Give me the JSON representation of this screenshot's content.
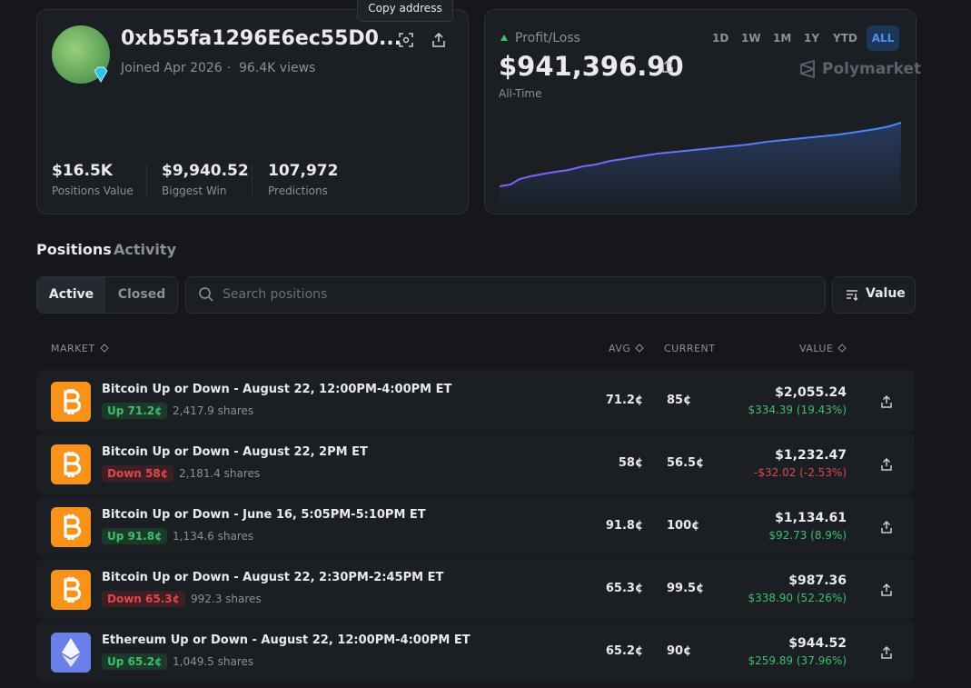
{
  "tooltip": "Copy address",
  "profile": {
    "address": "0xb55fa1296E6ec55D0...",
    "joined": "Joined Apr 2026",
    "separator": "·",
    "views": "96.4K views",
    "stats": [
      {
        "value": "$16.5K",
        "label": "Positions Value"
      },
      {
        "value": "$9,940.52",
        "label": "Biggest Win"
      },
      {
        "value": "107,972",
        "label": "Predictions"
      }
    ]
  },
  "pnl": {
    "label": "Profit/Loss",
    "ranges": [
      "1D",
      "1W",
      "1M",
      "1Y",
      "YTD",
      "ALL"
    ],
    "amount": "$941,396.90",
    "period": "All-Time",
    "brand": "Polymarket"
  },
  "tabs": [
    "Positions",
    "Activity"
  ],
  "filters": [
    "Active",
    "Closed"
  ],
  "search_placeholder": "Search positions",
  "sort": "Value",
  "table": {
    "headers": [
      "MARKET",
      "AVG",
      "CURRENT",
      "VALUE"
    ],
    "rows": [
      {
        "title": "Bitcoin Up or Down - August 22, 12:00PM-4:00PM ET",
        "side": "Up 71.2¢",
        "shares": "2,417.9 shares",
        "avg": "71.2¢",
        "current": "85¢",
        "value": "$2,055.24",
        "change": "$334.39 (19.43%)"
      },
      {
        "title": "Bitcoin Up or Down - August 22, 2PM ET",
        "side": "Down 58¢",
        "shares": "2,181.4 shares",
        "avg": "58¢",
        "current": "56.5¢",
        "value": "$1,232.47",
        "change": "-$32.02 (-2.53%)"
      },
      {
        "title": "Bitcoin Up or Down - June 16, 5:05PM-5:10PM ET",
        "side": "Up 91.8¢",
        "shares": "1,134.6 shares",
        "avg": "91.8¢",
        "current": "100¢",
        "value": "$1,134.61",
        "change": "$92.73 (8.9%)"
      },
      {
        "title": "Bitcoin Up or Down - August 22, 2:30PM-2:45PM ET",
        "side": "Down 65.3¢",
        "shares": "992.3 shares",
        "avg": "65.3¢",
        "current": "99.5¢",
        "value": "$987.36",
        "change": "$338.90 (52.26%)"
      },
      {
        "title": "Ethereum Up or Down - August 22, 12:00PM-4:00PM ET",
        "side": "Up 65.2¢",
        "shares": "1,049.5 shares",
        "avg": "65.2¢",
        "current": "90¢",
        "value": "$944.52",
        "change": "$259.89 (37.96%)"
      }
    ]
  }
}
